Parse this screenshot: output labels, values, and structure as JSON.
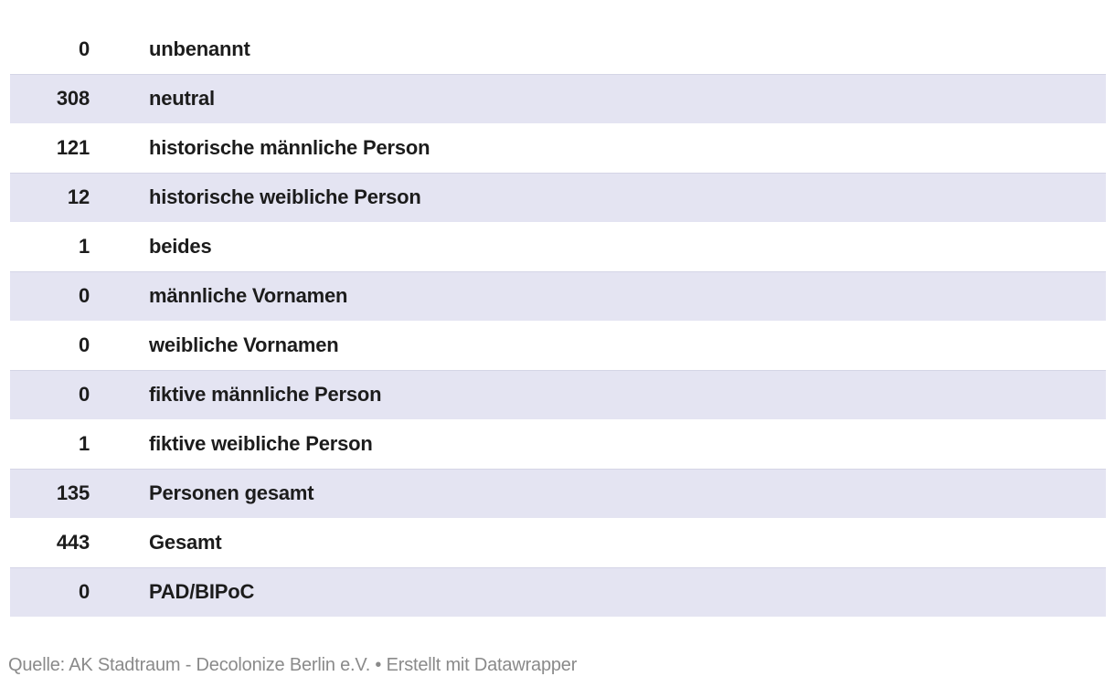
{
  "chart_data": {
    "type": "table",
    "rows": [
      {
        "value": 0,
        "label": "unbenannt"
      },
      {
        "value": 308,
        "label": "neutral"
      },
      {
        "value": 121,
        "label": "historische männliche Person"
      },
      {
        "value": 12,
        "label": "historische weibliche Person"
      },
      {
        "value": 1,
        "label": "beides"
      },
      {
        "value": 0,
        "label": "männliche Vornamen"
      },
      {
        "value": 0,
        "label": "weibliche Vornamen"
      },
      {
        "value": 0,
        "label": "fiktive männliche Person"
      },
      {
        "value": 1,
        "label": "fiktive weibliche Person"
      },
      {
        "value": 135,
        "label": "Personen gesamt"
      },
      {
        "value": 443,
        "label": "Gesamt"
      },
      {
        "value": 0,
        "label": "PAD/BIPoC"
      }
    ],
    "source": "AK Stadtraum - Decolonize Berlin e.V.",
    "credit": "Erstellt mit Datawrapper",
    "layout": {
      "striped": true,
      "first_row_striped": false,
      "grid": false,
      "legend": "none"
    }
  },
  "footer": {
    "source_label": "Quelle:",
    "source_text": "AK Stadtraum - Decolonize Berlin e.V.",
    "separator": "•",
    "credit_text": "Erstellt mit Datawrapper"
  },
  "colors": {
    "background": "#ffffff",
    "stripe": "#e4e4f2",
    "stripe_border": "#d4d5e6",
    "text": "#1c1c1c",
    "footer_text": "#8a8a8a"
  }
}
